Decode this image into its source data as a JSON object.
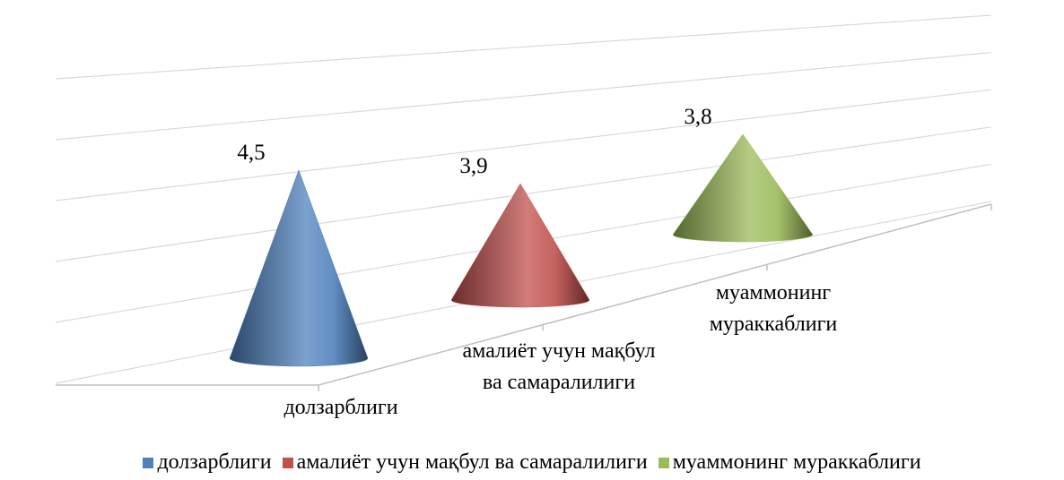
{
  "chart_data": {
    "type": "cone",
    "categories": [
      "долзарблиги",
      "амалиёт учун мақбул ва самаралилиги",
      "муаммонинг мураккаблиги"
    ],
    "values": [
      4.5,
      3.9,
      3.8
    ],
    "value_labels": [
      "4,5",
      "3,9",
      "3,8"
    ],
    "colors": [
      "#4f81bd",
      "#c0504d",
      "#9bbb59"
    ],
    "ylim": [
      0,
      5
    ],
    "yticks": [
      0,
      1,
      2,
      3,
      4,
      5
    ],
    "tick_labels": false,
    "grid": true,
    "legend": "bottom"
  }
}
